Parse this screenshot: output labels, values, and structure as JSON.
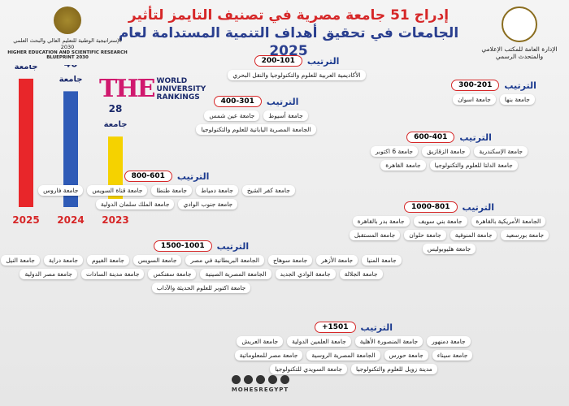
{
  "header": {
    "title_lines": [
      "إدراج 51 جامعة مصرية في تصنيف التايمز لتأثير",
      "الجامعات في تحقيق أهداف التنمية المستدامة لعام 2025"
    ],
    "left_logo_ar": "الإستراتيجية الوطنية للتعليم العالي والبحث العلمي 2030",
    "left_logo_en": "HIGHER EDUCATION AND SCIENTIFIC RESEARCH BLUEPRINT 2030",
    "right_logo": "الإدارة العامة للمكتب الإعلامي والمتحدث الرسمي",
    "the_logo": "THE",
    "the_logo_sub": [
      "WORLD",
      "UNIVERSITY",
      "RANKINGS"
    ]
  },
  "chart_data": {
    "type": "bar",
    "categories": [
      "2025",
      "2024",
      "2023"
    ],
    "values": [
      51,
      46,
      28
    ],
    "value_unit": "جامعة",
    "colors": [
      "#e8262a",
      "#2f5bb7",
      "#f5d200"
    ]
  },
  "tiers": [
    {
      "heading": "الترتيب",
      "range": "200-101",
      "universities": [
        "الأكاديمية العربية للعلوم والتكنولوجيا والنقل البحري"
      ]
    },
    {
      "heading": "الترتيب",
      "range": "300-201",
      "universities": [
        "جامعة بنها",
        "جامعة اسوان"
      ]
    },
    {
      "heading": "الترتيب",
      "range": "400-301",
      "universities": [
        "جامعة أسيوط",
        "جامعة عين شمس",
        "الجامعة المصرية اليابانية للعلوم والتكنولوجيا"
      ]
    },
    {
      "heading": "الترتيب",
      "range": "600-401",
      "universities": [
        "جامعة الإسكندرية",
        "جامعة الزقازيق",
        "جامعة 6 اكتوبر",
        "جامعة الدلتا للعلوم والتكنولوجيا",
        "جامعة القاهرة"
      ]
    },
    {
      "heading": "الترتيب",
      "range": "800-601",
      "universities": [
        "جامعة كفر الشيخ",
        "جامعة دمياط",
        "جامعة طنطا",
        "جامعة قناة السويس",
        "جامعة فاروس",
        "جامعة جنوب الوادي",
        "جامعة الملك سلمان الدولية"
      ]
    },
    {
      "heading": "الترتيب",
      "range": "1000-801",
      "universities": [
        "الجامعة الأمريكية بالقاهرة",
        "جامعة بني سويف",
        "جامعة بدر بالقاهرة",
        "جامعة بورسعيد",
        "جامعة المنوفية",
        "جامعة حلوان",
        "جامعة المستقبل",
        "جامعة هليوبوليس"
      ]
    },
    {
      "heading": "الترتيب",
      "range": "1500-1001",
      "universities": [
        "جامعة المنيا",
        "جامعة الأزهر",
        "جامعة سوهاج",
        "الجامعة البريطانية في مصر",
        "جامعة السويس",
        "جامعة الفيوم",
        "جامعة دراية",
        "جامعة النيل",
        "جامعة الجلالة",
        "جامعة الوادي الجديد",
        "الجامعة المصرية الصينية",
        "جامعة سفنكس",
        "جامعة مدينة السادات",
        "جامعة مصر الدولية",
        "جامعة اكتوبر للعلوم الحديثة والآداب"
      ]
    },
    {
      "heading": "الترتيب",
      "range": "+1501",
      "universities": [
        "جامعة دمنهور",
        "جامعة المنصورة الأهلية",
        "جامعة العلمين الدولية",
        "جامعة العريش",
        "جامعة سيناء",
        "جامعة حورس",
        "الجامعة المصرية الروسية",
        "جامعة مصر للمعلوماتية",
        "مدينة زويل للعلوم والتكنولوجيا",
        "جامعة السويدي للتكنولوجيا"
      ]
    }
  ],
  "footer": {
    "handle": "MOHESREGYPT"
  }
}
